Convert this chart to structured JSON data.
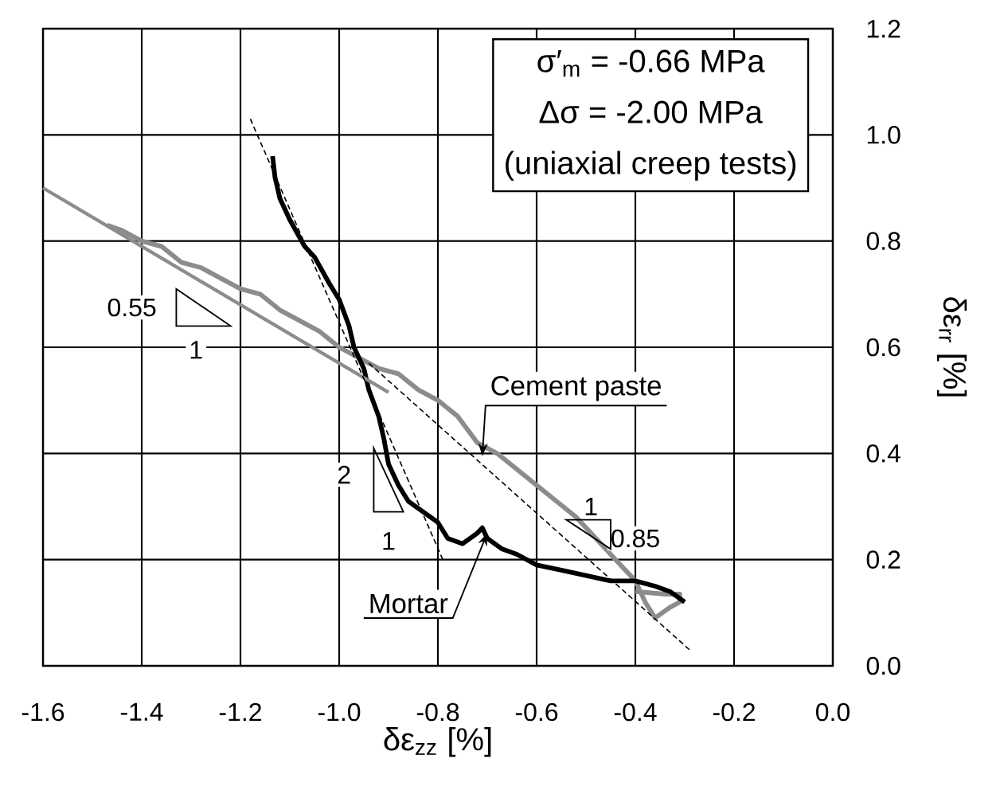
{
  "chart_data": {
    "type": "line",
    "xlabel": "δε$_{zz}$ [%]",
    "ylabel": "δε$_{rr}$ [%]",
    "xlim": [
      -1.6,
      0.0
    ],
    "ylim": [
      0.0,
      1.2
    ],
    "xticks": [
      -1.6,
      -1.4,
      -1.2,
      {
        "value": -1.0,
        "label": "-1.0"
      },
      -0.8,
      -0.6,
      -0.4,
      -0.2,
      {
        "value": 0.0,
        "label": "0.0"
      }
    ],
    "yticks": [
      {
        "value": 0.0,
        "label": "0.0"
      },
      0.2,
      0.4,
      0.6,
      0.8,
      {
        "value": 1.0,
        "label": "1.0"
      },
      1.2
    ],
    "grid": true,
    "line_style": "solid",
    "series": [
      {
        "name": "Cement paste",
        "color": "#8c8c8c",
        "x": [
          -1.47,
          -1.44,
          -1.4,
          -1.36,
          -1.32,
          -1.28,
          -1.24,
          -1.2,
          -1.16,
          -1.12,
          -1.08,
          -1.04,
          -1.0,
          -0.96,
          -0.92,
          -0.88,
          -0.84,
          -0.8,
          -0.76,
          -0.72,
          -0.68,
          -0.64,
          -0.6,
          -0.56,
          -0.52,
          -0.48,
          -0.44,
          -0.4,
          -0.38,
          -0.36,
          -0.33,
          -0.31,
          -0.31,
          -0.34,
          -0.4
        ],
        "values": [
          0.83,
          0.82,
          0.8,
          0.79,
          0.76,
          0.75,
          0.73,
          0.71,
          0.7,
          0.67,
          0.65,
          0.63,
          0.6,
          0.58,
          0.56,
          0.55,
          0.52,
          0.5,
          0.47,
          0.42,
          0.4,
          0.37,
          0.34,
          0.31,
          0.28,
          0.24,
          0.2,
          0.16,
          0.12,
          0.09,
          0.11,
          0.12,
          0.135,
          0.135,
          0.14
        ]
      },
      {
        "name": "Mortar",
        "color": "#000000",
        "x": [
          -1.135,
          -1.13,
          -1.12,
          -1.1,
          -1.07,
          -1.05,
          -1.02,
          -1.0,
          -0.98,
          -0.97,
          -0.95,
          -0.94,
          -0.92,
          -0.91,
          -0.9,
          -0.88,
          -0.86,
          -0.83,
          -0.8,
          -0.78,
          -0.75,
          -0.72,
          -0.71,
          -0.7,
          -0.67,
          -0.64,
          -0.6,
          -0.55,
          -0.5,
          -0.45,
          -0.4,
          -0.36,
          -0.33,
          -0.3
        ],
        "values": [
          0.96,
          0.92,
          0.88,
          0.84,
          0.79,
          0.77,
          0.72,
          0.69,
          0.64,
          0.6,
          0.56,
          0.52,
          0.47,
          0.43,
          0.38,
          0.34,
          0.31,
          0.29,
          0.27,
          0.24,
          0.23,
          0.25,
          0.26,
          0.24,
          0.22,
          0.21,
          0.19,
          0.18,
          0.17,
          0.16,
          0.16,
          0.15,
          0.14,
          0.12
        ]
      },
      {
        "color": "#8c8c8c",
        "x": [
          -1.6,
          -0.9
        ],
        "values": [
          0.9,
          0.515
        ]
      },
      {
        "color": "#000000",
        "line_style": "dashed",
        "x": [
          -0.94,
          -0.29
        ],
        "values": [
          0.57,
          0.03
        ]
      },
      {
        "color": "#000000",
        "line_style": "dashed",
        "x": [
          -1.18,
          -0.79
        ],
        "values": [
          1.03,
          0.2
        ]
      }
    ],
    "annotations": [
      "σ′$_{m}$ = -0.66 MPa",
      "Δσ = -2.00 MPa",
      "(uniaxial creep tests)",
      {
        "text": "0.55",
        "x": -1.42,
        "y": 0.675
      },
      {
        "text": "1",
        "x": -1.29,
        "y": 0.595
      },
      {
        "text": "2",
        "x": -0.99,
        "y": 0.36
      },
      {
        "text": "1",
        "x": -0.9,
        "y": 0.235
      },
      {
        "text": "1",
        "x": -0.49,
        "y": 0.3
      },
      {
        "text": "0.85",
        "x": -0.4,
        "y": 0.24
      }
    ]
  }
}
